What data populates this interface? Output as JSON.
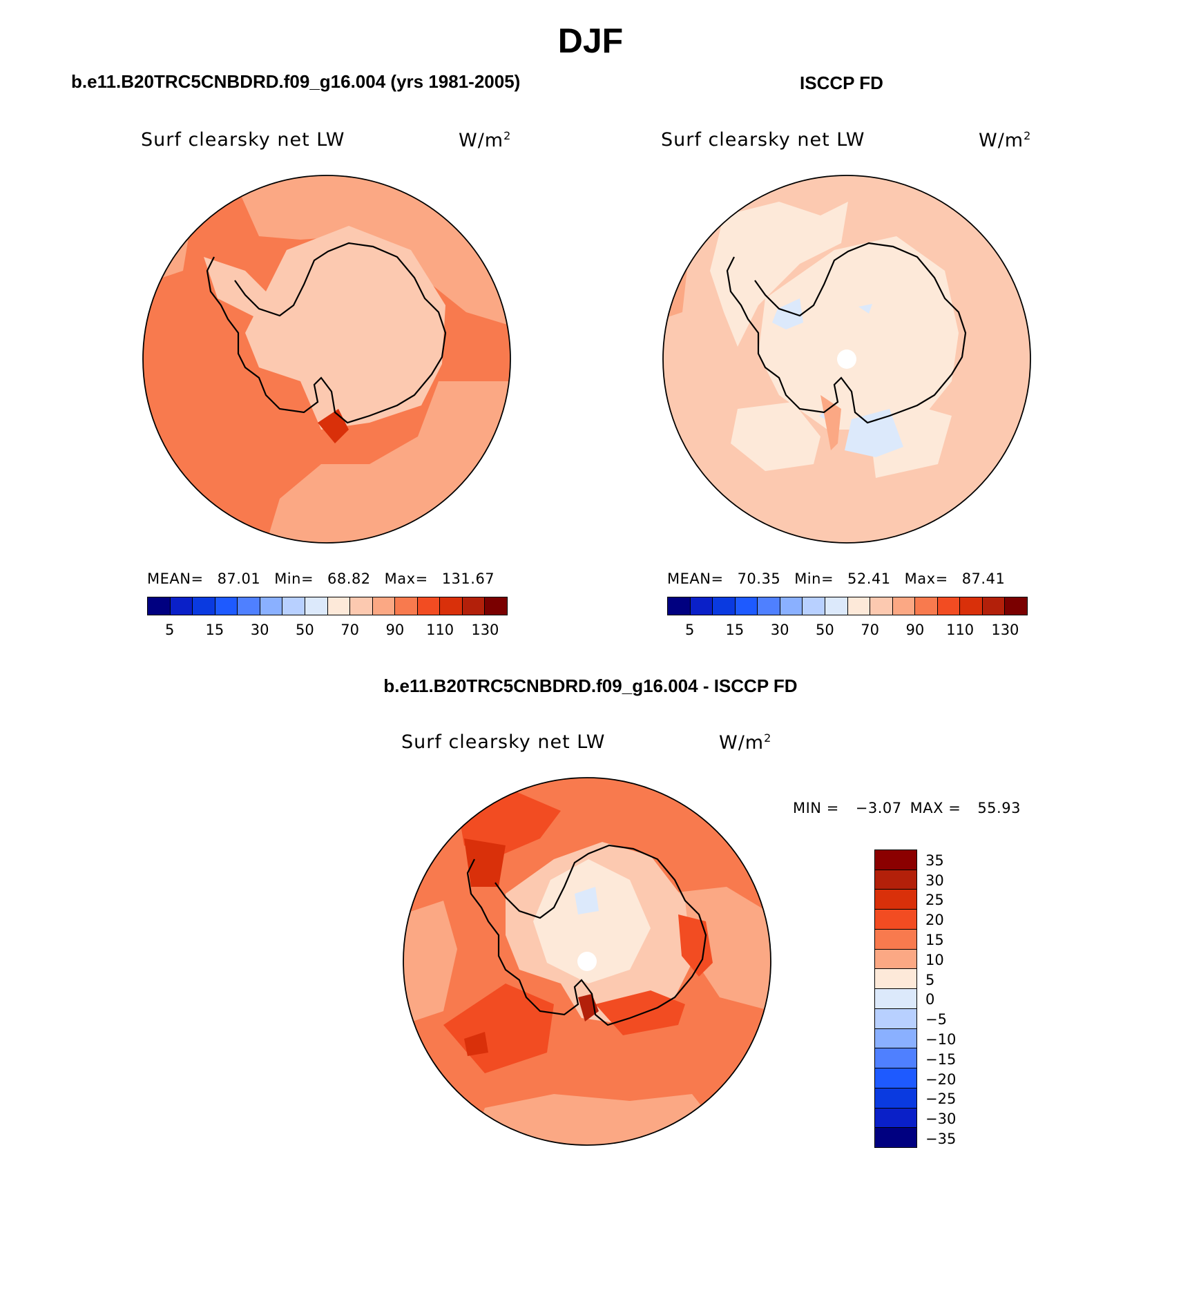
{
  "title": "DJF",
  "panels": {
    "model": {
      "title": "b.e11.B20TRC5CNBDRD.f09_g16.004 (yrs 1981-2005)",
      "variable": "Surf clearsky net LW",
      "units": "W/m",
      "units_exp": "2",
      "mean_label": "MEAN=",
      "mean": "87.01",
      "min_label": "Min=",
      "min": "68.82",
      "max_label": "Max=",
      "max": "131.67"
    },
    "obs": {
      "title": "ISCCP FD",
      "variable": "Surf clearsky net LW",
      "units": "W/m",
      "units_exp": "2",
      "mean_label": "MEAN=",
      "mean": "70.35",
      "min_label": "Min=",
      "min": "52.41",
      "max_label": "Max=",
      "max": "87.41"
    },
    "diff": {
      "title": "b.e11.B20TRC5CNBDRD.f09_g16.004 - ISCCP FD",
      "variable": "Surf clearsky net LW",
      "units": "W/m",
      "units_exp": "2",
      "min_label": "MIN =",
      "min": "−3.07",
      "max_label": "MAX =",
      "max": "55.93"
    }
  },
  "colorbars": {
    "abs": {
      "colors": [
        "#000080",
        "#0a20c8",
        "#0a3ae0",
        "#1e5aff",
        "#4f80ff",
        "#8ab0ff",
        "#b8d0ff",
        "#dce9fb",
        "#fde9d9",
        "#fcc9b0",
        "#fba884",
        "#f87a4e",
        "#f24c22",
        "#d9300a",
        "#b3200a",
        "#7a0000"
      ],
      "ticks": [
        "5",
        "15",
        "30",
        "50",
        "70",
        "90",
        "110",
        "130"
      ]
    },
    "diff": {
      "colors": [
        "#8b0000",
        "#b3200a",
        "#d9300a",
        "#f24c22",
        "#f87a4e",
        "#fba884",
        "#fde9d9",
        "#dce9fb",
        "#b8d0ff",
        "#8ab0ff",
        "#4f80ff",
        "#1e5aff",
        "#0a3ae0",
        "#0a20c8",
        "#000080"
      ],
      "ticks": [
        "35",
        "30",
        "25",
        "20",
        "15",
        "10",
        "5",
        "0",
        "−5",
        "−10",
        "−15",
        "−20",
        "−25",
        "−30",
        "−35"
      ]
    }
  }
}
